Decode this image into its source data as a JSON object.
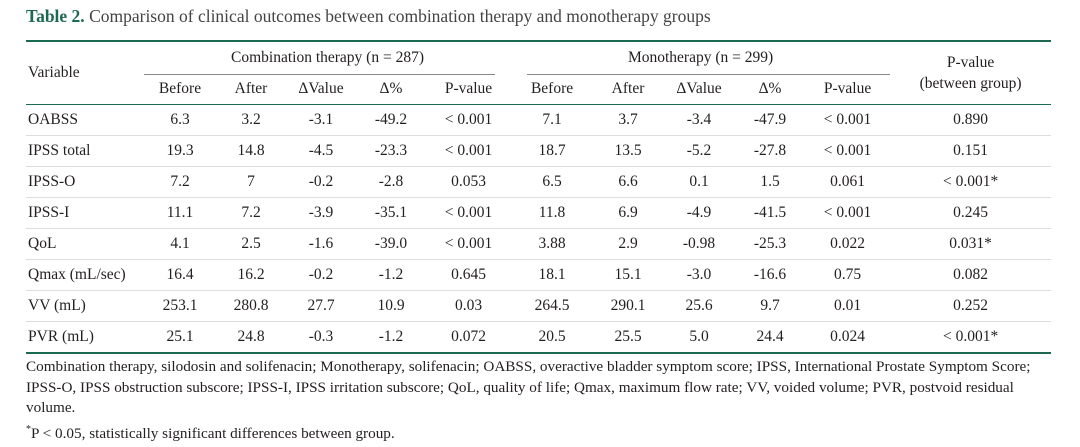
{
  "caption": {
    "label": "Table 2.",
    "text": "Comparison of clinical outcomes between combination therapy and monotherapy groups"
  },
  "table": {
    "variable_header": "Variable",
    "group1_header": "Combination therapy (n = 287)",
    "group2_header": "Monotherapy (n = 299)",
    "pvalue_between_header_line1": "P-value",
    "pvalue_between_header_line2": "(between group)",
    "sub_headers": [
      "Before",
      "After",
      "ΔValue",
      "Δ%",
      "P-value",
      "Before",
      "After",
      "ΔValue",
      "Δ%",
      "P-value"
    ],
    "rows": [
      [
        "OABSS",
        "6.3",
        "3.2",
        "-3.1",
        "-49.2",
        "< 0.001",
        "7.1",
        "3.7",
        "-3.4",
        "-47.9",
        "< 0.001",
        "0.890"
      ],
      [
        "IPSS total",
        "19.3",
        "14.8",
        "-4.5",
        "-23.3",
        "< 0.001",
        "18.7",
        "13.5",
        "-5.2",
        "-27.8",
        "< 0.001",
        "0.151"
      ],
      [
        "IPSS-O",
        "7.2",
        "7",
        "-0.2",
        "-2.8",
        "0.053",
        "6.5",
        "6.6",
        "0.1",
        "1.5",
        "0.061",
        "< 0.001*"
      ],
      [
        "IPSS-I",
        "11.1",
        "7.2",
        "-3.9",
        "-35.1",
        "< 0.001",
        "11.8",
        "6.9",
        "-4.9",
        "-41.5",
        "< 0.001",
        "0.245"
      ],
      [
        "QoL",
        "4.1",
        "2.5",
        "-1.6",
        "-39.0",
        "< 0.001",
        "3.88",
        "2.9",
        "-0.98",
        "-25.3",
        "0.022",
        "0.031*"
      ],
      [
        "Qmax (mL/sec)",
        "16.4",
        "16.2",
        "-0.2",
        "-1.2",
        "0.645",
        "18.1",
        "15.1",
        "-3.0",
        "-16.6",
        "0.75",
        "0.082"
      ],
      [
        "VV (mL)",
        "253.1",
        "280.8",
        "27.7",
        "10.9",
        "0.03",
        "264.5",
        "290.1",
        "25.6",
        "9.7",
        "0.01",
        "0.252"
      ],
      [
        "PVR (mL)",
        "25.1",
        "24.8",
        "-0.3",
        "-1.2",
        "0.072",
        "20.5",
        "25.5",
        "5.0",
        "24.4",
        "0.024",
        "< 0.001*"
      ]
    ]
  },
  "footnote": "Combination therapy, silodosin and solifenacin; Monotherapy, solifenacin; OABSS, overactive bladder symptom score; IPSS, International Prostate Symptom Score; IPSS-O, IPSS obstruction subscore; IPSS-I, IPSS irritation subscore; QoL, quality of life; Qmax, maximum flow rate; VV, voided volume; PVR, postvoid residual volume.",
  "footnote_symbol": "*",
  "footnote_sig": "P < 0.05, statistically significant differences between group."
}
